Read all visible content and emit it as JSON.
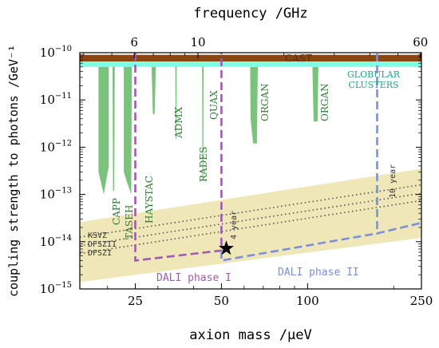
{
  "chart_data": {
    "type": "line",
    "title": "",
    "xlabel": "axion mass /µeV",
    "ylabel": "coupling strength to photons /GeV⁻¹",
    "x_top_label": "frequency /GHz",
    "x_scale": "log",
    "y_scale": "log",
    "xlim": [
      16,
      250
    ],
    "ylim": [
      1e-15,
      1e-10
    ],
    "x_ticks": [
      {
        "value": 25,
        "label": "25"
      },
      {
        "value": 50,
        "label": "50"
      },
      {
        "value": 100,
        "label": "100"
      },
      {
        "value": 250,
        "label": "250"
      }
    ],
    "x_top_ticks": [
      {
        "value": 24.8,
        "label": "6"
      },
      {
        "value": 41.4,
        "label": "10"
      },
      {
        "value": 248,
        "label": "60"
      }
    ],
    "y_ticks": [
      {
        "value": 1e-10,
        "base": "10",
        "exp": "−10"
      },
      {
        "value": 1e-11,
        "base": "10",
        "exp": "−11"
      },
      {
        "value": 1e-12,
        "base": "10",
        "exp": "−12"
      },
      {
        "value": 1e-13,
        "base": "10",
        "exp": "−13"
      },
      {
        "value": 1e-14,
        "base": "10",
        "exp": "−14"
      },
      {
        "value": 1e-15,
        "base": "10",
        "exp": "−15"
      }
    ],
    "regions": [
      {
        "label": "CAST",
        "y_from": 6.5e-11,
        "y_to": 9e-11,
        "color": "#8b4513"
      },
      {
        "label": "GLOBULAR CLUSTERS",
        "label_lines": [
          "GLOBULAR",
          "CLUSTERS"
        ],
        "y_from": 5e-11,
        "y_to": 6.5e-11,
        "color": "#7fffe8"
      }
    ],
    "qcd_band": {
      "color": "#efe7b8",
      "lower": [
        [
          16,
          1.4e-15
        ],
        [
          250,
          1.2e-14
        ]
      ],
      "upper": [
        [
          16,
          2.6e-14
        ],
        [
          250,
          3.5e-13
        ]
      ]
    },
    "model_lines": [
      {
        "label": "KSVZ",
        "points": [
          [
            16,
            1.25e-14
          ],
          [
            250,
            1.6e-13
          ]
        ]
      },
      {
        "label": "DFSZII",
        "points": [
          [
            16,
            8.2e-15
          ],
          [
            250,
            1.05e-13
          ]
        ]
      },
      {
        "label": "DFSZI",
        "points": [
          [
            16,
            5.6e-15
          ],
          [
            250,
            7.4e-14
          ]
        ]
      }
    ],
    "experiments": [
      {
        "label": "CAPP",
        "polygon": [
          [
            18.6,
            5e-11
          ],
          [
            20.2,
            5e-11
          ],
          [
            20.2,
            4e-13
          ],
          [
            19.4,
            1e-13
          ],
          [
            18.6,
            3e-13
          ]
        ]
      },
      {
        "label": "TASEH",
        "polygon": [
          [
            20.8,
            5e-11
          ],
          [
            21.2,
            5e-11
          ],
          [
            21.1,
            1.2e-13
          ],
          [
            20.9,
            1.2e-13
          ]
        ]
      },
      {
        "label": "HAYSTAC",
        "polygon": [
          [
            22.8,
            5e-11
          ],
          [
            24.3,
            5e-11
          ],
          [
            24.2,
            1e-13
          ],
          [
            23.4,
            1.8e-13
          ],
          [
            22.8,
            3e-13
          ]
        ]
      },
      {
        "label": "ADMX",
        "polygon": [
          [
            28.5,
            5e-11
          ],
          [
            29.5,
            5e-11
          ],
          [
            29.2,
            5e-12
          ],
          [
            28.8,
            5e-12
          ]
        ]
      },
      {
        "label": "RADES",
        "polygon": [
          [
            34.5,
            5e-11
          ],
          [
            34.9,
            5e-11
          ],
          [
            34.8,
            1.5e-12
          ],
          [
            34.6,
            1.5e-12
          ]
        ]
      },
      {
        "label": "QUAX",
        "polygon": [
          [
            42.8,
            5e-11
          ],
          [
            43.3,
            5e-11
          ],
          [
            43.2,
            2e-13
          ],
          [
            42.9,
            2e-13
          ]
        ]
      },
      {
        "label": "ORGAN",
        "polygon": [
          [
            63,
            5e-11
          ],
          [
            67,
            5e-11
          ],
          [
            66.5,
            1.2e-12
          ],
          [
            64.5,
            1.2e-12
          ],
          [
            63.2,
            4e-12
          ]
        ]
      },
      {
        "label": "ORGAN",
        "polygon": [
          [
            104,
            5e-11
          ],
          [
            109,
            5e-11
          ],
          [
            108.5,
            3.5e-12
          ],
          [
            105,
            3.5e-12
          ]
        ]
      }
    ],
    "phases": [
      {
        "label": "DALI phase I",
        "color": "#a05ab0",
        "years_label": "4 year",
        "points": [
          [
            25,
            1e-10
          ],
          [
            25,
            4e-15
          ],
          [
            50,
            6.5e-15
          ],
          [
            50,
            1e-10
          ]
        ]
      },
      {
        "label": "DALI phase II",
        "color": "#7b8fdc",
        "years_label": "10 year",
        "points": [
          [
            50,
            6.5e-15
          ],
          [
            50,
            4e-15
          ],
          [
            175,
            1.5e-14
          ],
          [
            250,
            2.5e-14
          ],
          [
            250,
            2.5e-14
          ],
          [
            175,
            1.5e-14
          ],
          [
            175,
            1e-10
          ]
        ]
      }
    ],
    "marker": {
      "x": 52,
      "y": 7.2e-15,
      "shape": "star",
      "color": "#000000"
    },
    "grid": false,
    "legend": "none"
  }
}
